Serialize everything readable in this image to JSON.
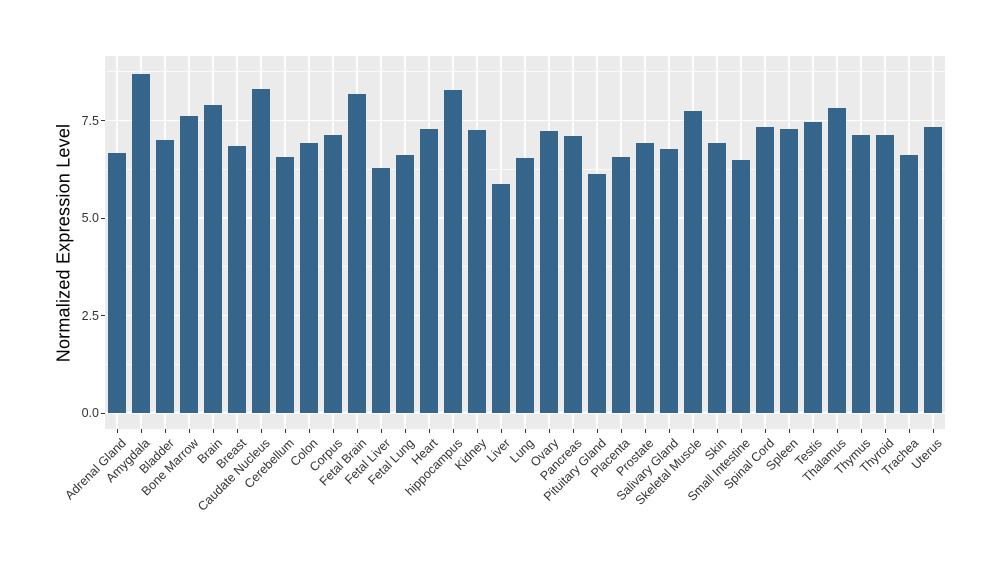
{
  "chart_data": {
    "type": "bar",
    "title": "",
    "xlabel": "",
    "ylabel": "Normalized Expression Level",
    "categories": [
      "Adrenal Gland",
      "Amygdala",
      "Bladder",
      "Bone Marrow",
      "Brain",
      "Breast",
      "Caudate Nucleus",
      "Cerebellum",
      "Colon",
      "Corpus",
      "Fetal Brain",
      "Fetal Liver",
      "Fetal Lung",
      "Heart",
      "hippocampus",
      "Kidney",
      "Liver",
      "Lung",
      "Ovary",
      "Pancreas",
      "Pituitary Gland",
      "Placenta",
      "Prostate",
      "Salivary Gland",
      "Skeletal Muscle",
      "Skin",
      "Small Intestine",
      "Spinal Cord",
      "Spleen",
      "Testis",
      "Thalamus",
      "Thymus",
      "Thyroid",
      "Trachea",
      "Uterus"
    ],
    "values": [
      6.67,
      8.69,
      7.0,
      7.62,
      7.91,
      6.85,
      8.31,
      6.56,
      6.93,
      7.13,
      8.17,
      6.28,
      6.62,
      7.27,
      8.28,
      7.25,
      5.87,
      6.53,
      7.22,
      7.1,
      6.13,
      6.56,
      6.93,
      6.77,
      7.75,
      6.93,
      6.49,
      7.33,
      7.28,
      7.46,
      7.81,
      7.13,
      7.13,
      6.62,
      7.34
    ],
    "ylim": [
      0,
      9.15
    ],
    "yticks": [
      0.0,
      2.5,
      5.0,
      7.5
    ],
    "ytick_labels": [
      "0.0",
      "2.5",
      "5.0",
      "7.5"
    ],
    "y_minor_ticks": [
      1.25,
      3.75,
      6.25,
      8.75
    ],
    "x_tick_angle_deg": 45,
    "grid": "white major and minor horizontal lines, white vertical line per category, on gray panel",
    "legend_position": "none",
    "colors": {
      "bar_fill": "#36658C",
      "panel_background": "#EBEBEB",
      "gridline": "#FFFFFF",
      "figure_background": "#FFFFFF",
      "axis_text": "#333333",
      "axis_title": "#000000"
    }
  }
}
